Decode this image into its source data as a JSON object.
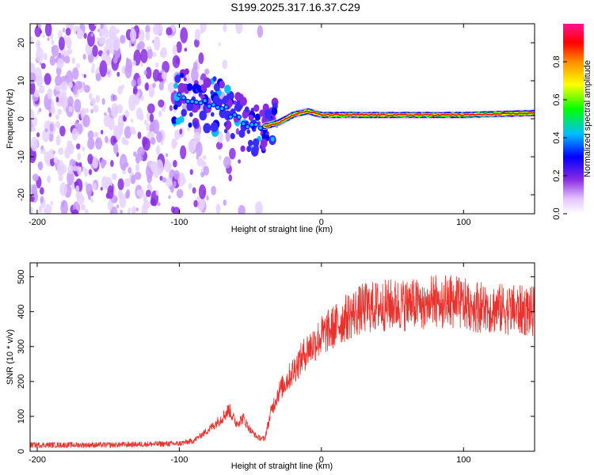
{
  "title": "S199.2025.317.16.37.C29",
  "colors": {
    "snr_line": "#e8322d",
    "rainbow": [
      "#ffffff",
      "#e8c8ff",
      "#8a2be2",
      "#0000ff",
      "#00bfff",
      "#00ff00",
      "#ffff00",
      "#ff8c00",
      "#ff0000",
      "#ff1493"
    ]
  },
  "chart_data": [
    {
      "type": "heatmap",
      "title": "",
      "xlabel": "Height of straight line (km)",
      "ylabel": "Frequency (Hz)",
      "xlim": [
        -205,
        150
      ],
      "ylim": [
        -25,
        25
      ],
      "xticks": [
        -200,
        -100,
        0,
        100
      ],
      "yticks": [
        -20,
        -10,
        0,
        10,
        20
      ],
      "colorbar": {
        "label": "Normalized spectral amplitude",
        "range": [
          0,
          1
        ],
        "ticks": [
          "0.0",
          "0.2",
          "0.4",
          "0.6",
          "0.8"
        ],
        "tick_values": [
          0.0,
          0.2,
          0.4,
          0.6,
          0.8
        ]
      },
      "ridge": {
        "description_points_x": [
          -100,
          -90,
          -80,
          -70,
          -60,
          -50,
          -40,
          -30,
          -20,
          -10,
          0,
          20,
          50,
          80,
          100,
          150
        ],
        "description_points_y": [
          6,
          5,
          4,
          3,
          0,
          -2,
          -2,
          -1,
          1,
          2,
          1,
          1,
          1,
          1,
          1,
          1.5
        ]
      }
    },
    {
      "type": "line",
      "title": "",
      "xlabel": "Height of straight line (km)",
      "ylabel": "SNR (10 * v/v)",
      "xlim": [
        -205,
        150
      ],
      "ylim": [
        0,
        540
      ],
      "xticks": [
        -200,
        -100,
        0,
        100
      ],
      "yticks": [
        0,
        100,
        200,
        300,
        400,
        500
      ],
      "series": [
        {
          "name": "SNR",
          "trend_x": [
            -205,
            -150,
            -100,
            -90,
            -80,
            -70,
            -65,
            -60,
            -55,
            -50,
            -45,
            -40,
            -35,
            -30,
            -20,
            -10,
            0,
            10,
            20,
            30,
            50,
            70,
            80,
            90,
            100,
            120,
            150
          ],
          "trend_y": [
            18,
            18,
            22,
            30,
            60,
            95,
            120,
            80,
            95,
            60,
            40,
            35,
            120,
            170,
            230,
            290,
            330,
            360,
            390,
            410,
            420,
            420,
            430,
            430,
            420,
            410,
            400
          ]
        }
      ]
    }
  ]
}
